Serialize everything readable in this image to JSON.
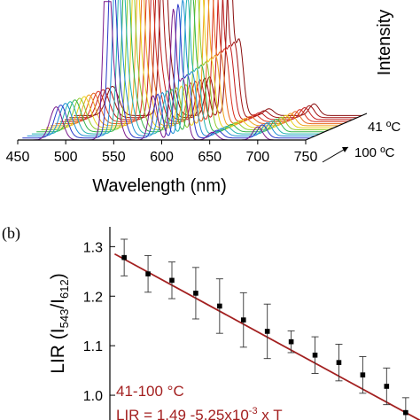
{
  "chart_data": [
    {
      "type": "line",
      "panel_label": "",
      "title": "",
      "xlabel": "Wavelength (nm)",
      "ylabel": "Intensity",
      "xlim": [
        450,
        750
      ],
      "x_ticks": [
        450,
        500,
        550,
        600,
        650,
        700,
        750
      ],
      "waterfall_axis_labels": [
        "41 ºC",
        "100 ºC"
      ],
      "series_count": 13,
      "temperature_range": [
        41,
        100
      ],
      "peaks_nm": [
        {
          "center": 490,
          "width": 9,
          "height": 0.3
        },
        {
          "center": 543,
          "width": 5,
          "height": 1.45
        },
        {
          "center": 548,
          "width": 9,
          "height": 0.55
        },
        {
          "center": 591,
          "width": 6,
          "height": 0.4
        },
        {
          "center": 612,
          "width": 4.5,
          "height": 1.15
        },
        {
          "center": 622,
          "width": 6,
          "height": 0.55
        },
        {
          "center": 653,
          "width": 7,
          "height": 0.07
        },
        {
          "center": 700,
          "width": 7,
          "height": 0.12
        }
      ],
      "color_order": [
        "#7a1a8c",
        "#2b38c8",
        "#1f8fd6",
        "#22b3b0",
        "#32b34a",
        "#8fca2a",
        "#e8d21a",
        "#f0a21a",
        "#e8651c",
        "#d9301e",
        "#c21a1a",
        "#a31212",
        "#8a0f0f"
      ]
    },
    {
      "type": "scatter",
      "panel_label": "(b)",
      "title": "",
      "xlabel": "",
      "ylabel_main": "LIR (I",
      "ylabel_sub1": "543",
      "ylabel_mid": "/I",
      "ylabel_sub2": "612",
      "ylabel_end": ")",
      "y_ticks": [
        "1.3",
        "1.2",
        "1.1",
        "1.0"
      ],
      "ylim": [
        0.95,
        1.34
      ],
      "xlim": [
        38,
        103
      ],
      "annotation_range": "41-100 °C",
      "annotation_fit": "LIR = 1.49 -5.25x10",
      "annotation_fit_exp": "-3",
      "annotation_fit_tail": " x T",
      "fit": {
        "intercept": 1.49,
        "slope": -0.00525
      },
      "points": [
        {
          "x": 41,
          "y": 1.278,
          "err": 0.037
        },
        {
          "x": 46,
          "y": 1.245,
          "err": 0.037
        },
        {
          "x": 51,
          "y": 1.232,
          "err": 0.037
        },
        {
          "x": 56,
          "y": 1.206,
          "err": 0.052
        },
        {
          "x": 61,
          "y": 1.18,
          "err": 0.055
        },
        {
          "x": 66,
          "y": 1.152,
          "err": 0.055
        },
        {
          "x": 71,
          "y": 1.129,
          "err": 0.055
        },
        {
          "x": 76,
          "y": 1.108,
          "err": 0.022
        },
        {
          "x": 81,
          "y": 1.081,
          "err": 0.037
        },
        {
          "x": 86,
          "y": 1.066,
          "err": 0.037
        },
        {
          "x": 91,
          "y": 1.041,
          "err": 0.037
        },
        {
          "x": 96,
          "y": 1.018,
          "err": 0.037
        },
        {
          "x": 100,
          "y": 0.965,
          "err": 0.03
        }
      ]
    }
  ]
}
